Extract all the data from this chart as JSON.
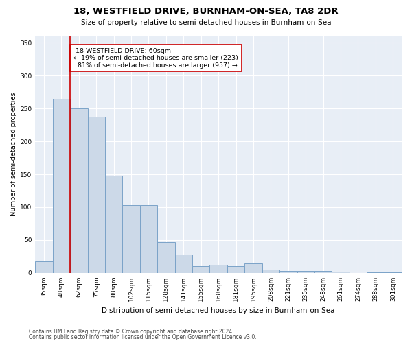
{
  "title": "18, WESTFIELD DRIVE, BURNHAM-ON-SEA, TA8 2DR",
  "subtitle": "Size of property relative to semi-detached houses in Burnham-on-Sea",
  "xlabel": "Distribution of semi-detached houses by size in Burnham-on-Sea",
  "ylabel": "Number of semi-detached properties",
  "categories": [
    "35sqm",
    "48sqm",
    "62sqm",
    "75sqm",
    "88sqm",
    "102sqm",
    "115sqm",
    "128sqm",
    "141sqm",
    "155sqm",
    "168sqm",
    "181sqm",
    "195sqm",
    "208sqm",
    "221sqm",
    "235sqm",
    "248sqm",
    "261sqm",
    "274sqm",
    "288sqm",
    "301sqm"
  ],
  "values": [
    18,
    265,
    250,
    238,
    148,
    103,
    103,
    47,
    28,
    10,
    12,
    10,
    14,
    5,
    3,
    3,
    3,
    2,
    0,
    1,
    1
  ],
  "bar_color": "#ccd9e8",
  "bar_edge_color": "#7ba3c8",
  "vline_x": 1.5,
  "vline_color": "#cc0000",
  "vline_label": "18 WESTFIELD DRIVE: 60sqm",
  "smaller_pct": "19%",
  "smaller_n": 223,
  "larger_pct": "81%",
  "larger_n": 957,
  "ylim": [
    0,
    360
  ],
  "yticks": [
    0,
    50,
    100,
    150,
    200,
    250,
    300,
    350
  ],
  "annotation_box_color": "#cc0000",
  "footer1": "Contains HM Land Registry data © Crown copyright and database right 2024.",
  "footer2": "Contains public sector information licensed under the Open Government Licence v3.0.",
  "plot_bg_color": "#e8eef6",
  "title_fontsize": 9.5,
  "subtitle_fontsize": 7.5,
  "xlabel_fontsize": 7.5,
  "ylabel_fontsize": 7,
  "tick_fontsize": 6.5,
  "annot_fontsize": 6.8,
  "footer_fontsize": 5.5
}
